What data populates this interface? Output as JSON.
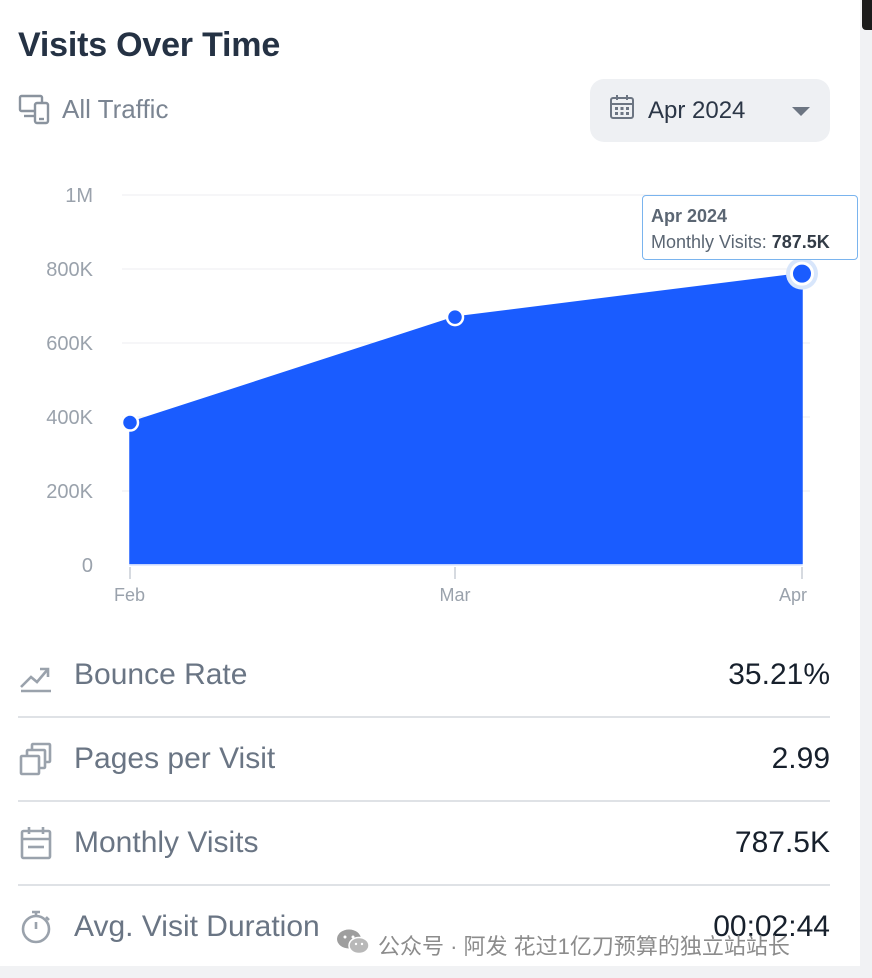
{
  "header": {
    "title": "Visits Over Time",
    "traffic_label": "All Traffic",
    "month_select_value": "Apr 2024"
  },
  "tooltip": {
    "title": "Apr 2024",
    "label": "Monthly Visits:",
    "value": "787.5K"
  },
  "chart_data": {
    "type": "area",
    "x": [
      "Feb",
      "Mar",
      "Apr"
    ],
    "series": [
      {
        "values": [
          385000,
          670000,
          787500
        ]
      }
    ],
    "y_ticks": [
      "0",
      "200K",
      "400K",
      "600K",
      "800K",
      "1M"
    ],
    "ylim": [
      0,
      1000000
    ],
    "grid": true,
    "highlighted_point": "Apr",
    "color": "#1a5cff"
  },
  "metrics": [
    {
      "label": "Bounce Rate",
      "value": "35.21%",
      "icon": "trend-icon"
    },
    {
      "label": "Pages per Visit",
      "value": "2.99",
      "icon": "pages-icon"
    },
    {
      "label": "Monthly Visits",
      "value": "787.5K",
      "icon": "calendar-icon"
    },
    {
      "label": "Avg. Visit Duration",
      "value": "00:02:44",
      "icon": "stopwatch-icon"
    }
  ],
  "watermark": {
    "text": "公众号 · 阿发 花过1亿刀预算的独立站站长"
  }
}
